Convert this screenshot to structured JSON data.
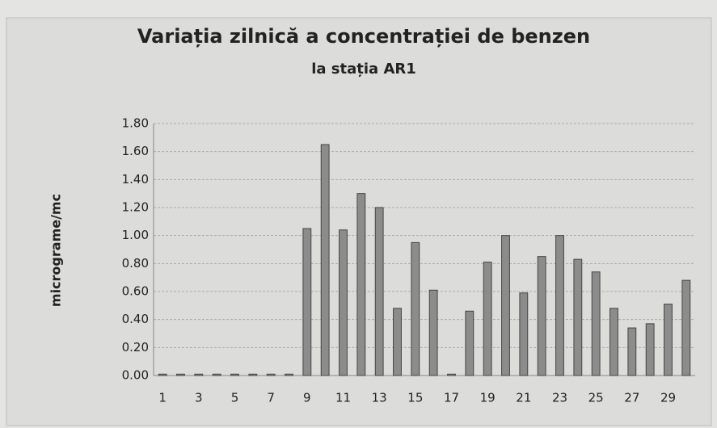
{
  "chart_data": {
    "type": "bar",
    "title": "Variația zilnică a concentrației de benzen",
    "subtitle": "la stația AR1",
    "y_label": "micrograme/mc",
    "categories": [
      "1",
      null,
      "3",
      null,
      "5",
      null,
      "7",
      null,
      "9",
      null,
      "11",
      null,
      "13",
      null,
      "15",
      null,
      "17",
      null,
      "19",
      null,
      "21",
      null,
      "23",
      null,
      "25",
      null,
      "27",
      null,
      "29",
      null
    ],
    "values": [
      0.01,
      0.01,
      0.01,
      0.01,
      0.01,
      0.01,
      0.01,
      0.01,
      1.05,
      1.65,
      1.04,
      1.3,
      1.2,
      0.48,
      0.95,
      0.61,
      0.01,
      0.46,
      0.81,
      1.0,
      0.59,
      0.85,
      1.0,
      0.83,
      0.74,
      0.48,
      0.34,
      0.37,
      0.51,
      0.68
    ],
    "color": "#8c8c8c",
    "ylim": [
      0,
      1.8
    ],
    "yticks": [
      {
        "value": 0,
        "label": "0.00"
      },
      {
        "value": 0.2,
        "label": "0.20"
      },
      {
        "value": 0.4,
        "label": "0.40"
      },
      {
        "value": 0.6,
        "label": "0.60"
      },
      {
        "value": 0.8,
        "label": "0.80"
      },
      {
        "value": 1.0,
        "label": "1.00"
      },
      {
        "value": 1.2,
        "label": "1.20"
      },
      {
        "value": 1.4,
        "label": "1.40"
      },
      {
        "value": 1.6,
        "label": "1.60"
      },
      {
        "value": 1.8,
        "label": "1.80"
      }
    ],
    "grid": true
  }
}
